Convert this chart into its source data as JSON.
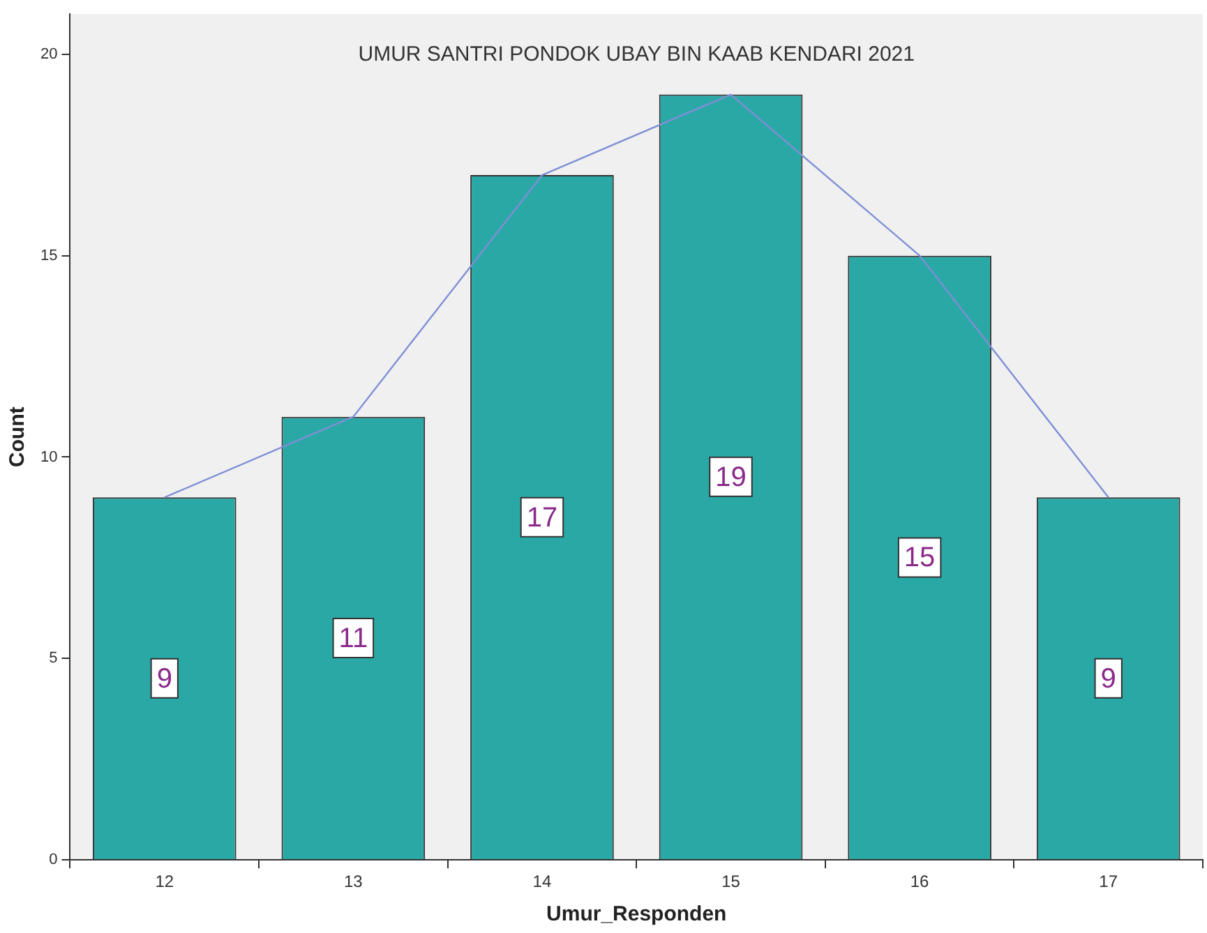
{
  "chart_data": {
    "type": "bar",
    "title": "UMUR SANTRI PONDOK UBAY BIN KAAB KENDARI 2021",
    "xlabel": "Umur_Responden",
    "ylabel": "Count",
    "categories": [
      "12",
      "13",
      "14",
      "15",
      "16",
      "17"
    ],
    "series": [
      {
        "color": "#2aa8a5",
        "values": [
          9,
          11,
          17,
          19,
          15,
          9
        ],
        "value_labels": [
          "9",
          "11",
          "17",
          "19",
          "15",
          "9"
        ]
      },
      {
        "type": "line",
        "color": "#7f8fd6",
        "values": [
          9,
          11,
          17,
          19,
          15,
          9
        ]
      }
    ],
    "ylim": [
      0,
      21
    ],
    "yticks": [
      0,
      5,
      10,
      15,
      20
    ],
    "grid": false,
    "legend": false,
    "marker": "none"
  }
}
